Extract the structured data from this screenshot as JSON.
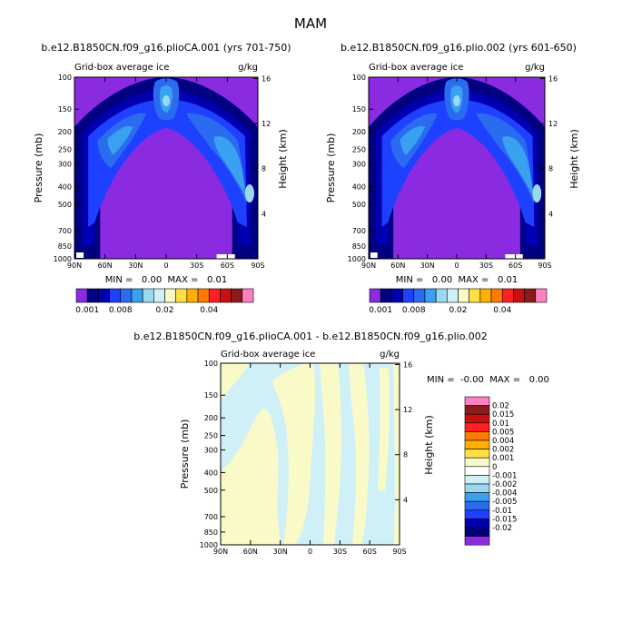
{
  "main_title": "MAM",
  "colors": {
    "purple": "#8a2be2",
    "navy1": "#000080",
    "navy2": "#0000b0",
    "blue": "#1e40ff",
    "mid": "#2b6bf0",
    "sky": "#3aa0f0",
    "light": "#9ad8f0",
    "pale": "#d0f0f8",
    "cream": "#fafac8",
    "yellow": "#ffe040",
    "orange": "#ffb000",
    "dorange": "#ff7a00",
    "red": "#ff2020",
    "dred": "#c81010",
    "maroon": "#8b1a1a",
    "pink": "#ff80c0"
  },
  "chart_data": [
    {
      "type": "heatmap",
      "title": "b.e12.B1850CN.f09_g16.plioCA.001 (yrs 701-750)",
      "subtitle": "Grid-box average ice",
      "units": "g/kg",
      "xlabel": "",
      "ylabel": "Pressure (mb)",
      "ylabel_right": "Height (km)",
      "x_ticks": [
        "90N",
        "60N",
        "30N",
        "0",
        "30S",
        "60S",
        "90S"
      ],
      "y_ticks": [
        "100",
        "150",
        "200",
        "250",
        "300",
        "400",
        "500",
        "700",
        "850",
        "1000"
      ],
      "height_ticks": [
        "16",
        "12",
        "8",
        "4"
      ],
      "min_max": "MIN =   0.00  MAX =   0.01",
      "legend_labels": [
        "0.001",
        "0.008",
        "0.02",
        "0.04"
      ]
    },
    {
      "type": "heatmap",
      "title": "b.e12.B1850CN.f09_g16.plio.002 (yrs 601-650)",
      "subtitle": "Grid-box average ice",
      "units": "g/kg",
      "xlabel": "",
      "ylabel": "Pressure (mb)",
      "ylabel_right": "Height (km)",
      "x_ticks": [
        "90N",
        "60N",
        "30N",
        "0",
        "30S",
        "60S",
        "90S"
      ],
      "y_ticks": [
        "100",
        "150",
        "200",
        "250",
        "300",
        "400",
        "500",
        "700",
        "850",
        "1000"
      ],
      "height_ticks": [
        "16",
        "12",
        "8",
        "4"
      ],
      "min_max": "MIN =   0.00  MAX =   0.01",
      "legend_labels": [
        "0.001",
        "0.008",
        "0.02",
        "0.04"
      ]
    },
    {
      "type": "heatmap",
      "title": "b.e12.B1850CN.f09_g16.plioCA.001 - b.e12.B1850CN.f09_g16.plio.002",
      "subtitle": "Grid-box average ice",
      "units": "g/kg",
      "xlabel": "",
      "ylabel": "Pressure (mb)",
      "ylabel_right": "Height (km)",
      "x_ticks": [
        "90N",
        "60N",
        "30N",
        "0",
        "30S",
        "60S",
        "90S"
      ],
      "y_ticks": [
        "100",
        "150",
        "200",
        "250",
        "300",
        "400",
        "500",
        "700",
        "850",
        "1000"
      ],
      "height_ticks": [
        "16",
        "12",
        "8",
        "4"
      ],
      "min_max": "MIN =  -0.00  MAX =   0.00",
      "legend_labels": [
        "0.02",
        "0.015",
        "0.01",
        "0.005",
        "0.004",
        "0.002",
        "0.001",
        "0",
        "-0.001",
        "-0.002",
        "-0.004",
        "-0.005",
        "-0.01",
        "-0.015",
        "-0.02"
      ]
    }
  ]
}
